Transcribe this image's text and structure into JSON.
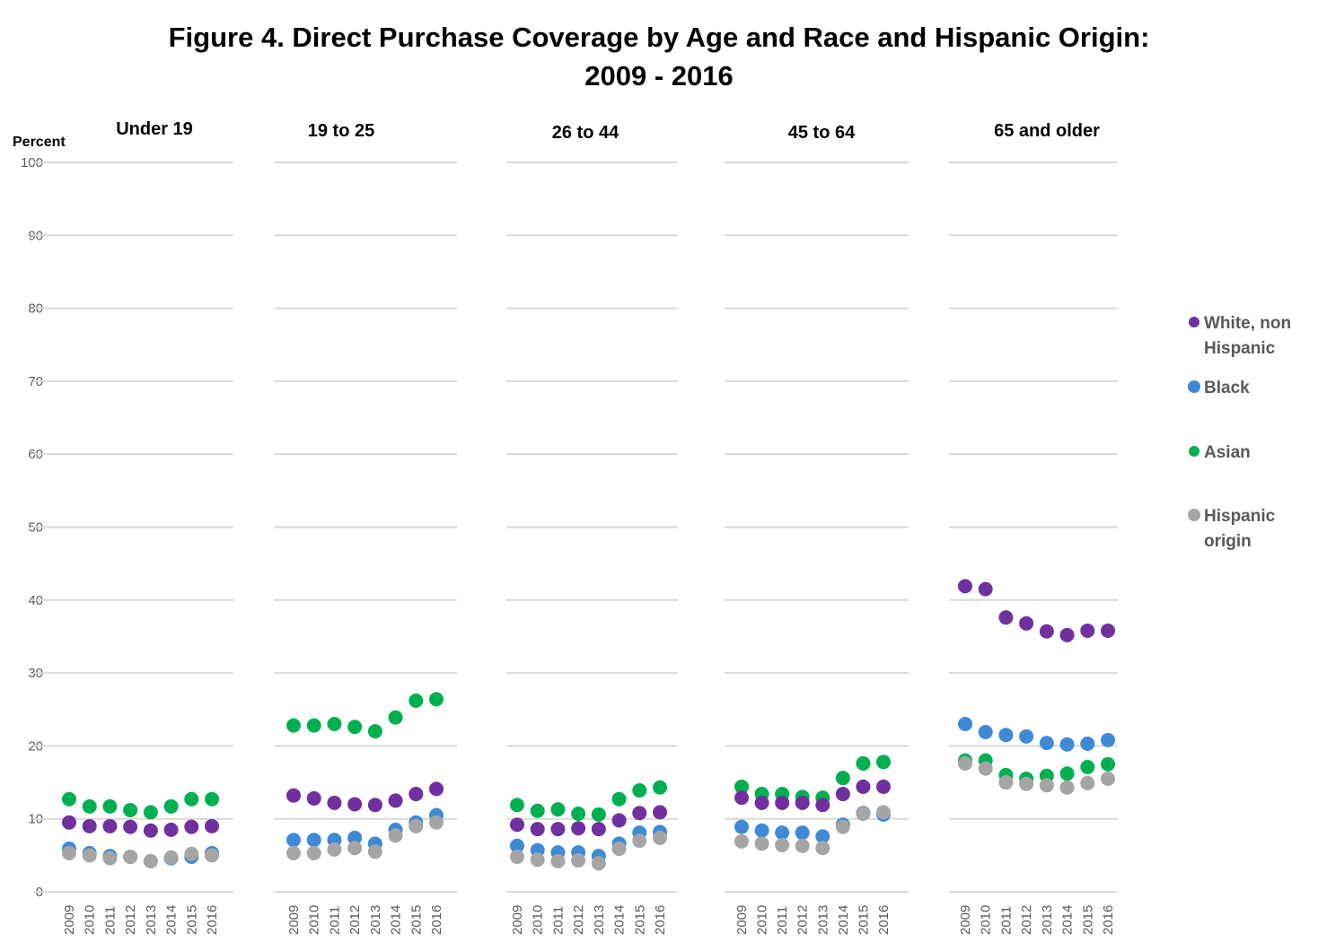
{
  "chart_data": {
    "type": "scatter",
    "title_lines": [
      "Figure 4. Direct Purchase Coverage by Age and Race and Hispanic Origin:",
      "2009 - 2016"
    ],
    "ylabel": "Percent",
    "xlabel": "",
    "ylim": [
      0,
      100
    ],
    "yticks": [
      0,
      10,
      20,
      30,
      40,
      50,
      60,
      70,
      80,
      90,
      100
    ],
    "grid": true,
    "legend_position": "right",
    "x": [
      "2009",
      "2010",
      "2011",
      "2012",
      "2013",
      "2014",
      "2015",
      "2016"
    ],
    "series_meta": [
      {
        "key": "white",
        "name_lines": [
          "White, non",
          "Hispanic"
        ],
        "color": "#7030a0"
      },
      {
        "key": "black",
        "name_lines": [
          "Black"
        ],
        "color": "#3f8ad6"
      },
      {
        "key": "asian",
        "name_lines": [
          "Asian"
        ],
        "color": "#00b050"
      },
      {
        "key": "hispanic",
        "name_lines": [
          "Hispanic",
          "origin"
        ],
        "color": "#a5a5a5"
      }
    ],
    "panels": [
      {
        "title": "Under 19",
        "series": {
          "white": [
            9.5,
            9.0,
            9.0,
            8.9,
            8.4,
            8.5,
            8.9,
            9.0
          ],
          "black": [
            5.9,
            5.3,
            4.9,
            4.8,
            4.2,
            4.6,
            4.8,
            5.3
          ],
          "asian": [
            12.7,
            11.7,
            11.7,
            11.2,
            10.9,
            11.7,
            12.7,
            12.7
          ],
          "hispanic": [
            5.3,
            5.0,
            4.6,
            4.8,
            4.2,
            4.7,
            5.2,
            5.0
          ]
        }
      },
      {
        "title": "19 to 25",
        "series": {
          "white": [
            13.2,
            12.8,
            12.2,
            12.0,
            11.9,
            12.5,
            13.4,
            14.1
          ],
          "black": [
            7.1,
            7.1,
            7.1,
            7.4,
            6.6,
            8.5,
            9.5,
            10.5
          ],
          "asian": [
            22.8,
            22.8,
            23.0,
            22.6,
            22.0,
            23.9,
            26.2,
            26.4
          ],
          "hispanic": [
            5.3,
            5.3,
            5.8,
            6.0,
            5.5,
            7.7,
            9.0,
            9.5
          ]
        }
      },
      {
        "title": "26 to 44",
        "series": {
          "white": [
            9.2,
            8.6,
            8.6,
            8.7,
            8.6,
            9.8,
            10.8,
            10.9
          ],
          "black": [
            6.3,
            5.7,
            5.4,
            5.4,
            4.9,
            6.6,
            8.1,
            8.2
          ],
          "asian": [
            11.9,
            11.1,
            11.3,
            10.7,
            10.6,
            12.7,
            13.9,
            14.3
          ],
          "hispanic": [
            4.8,
            4.4,
            4.2,
            4.3,
            3.9,
            5.9,
            7.0,
            7.4
          ]
        }
      },
      {
        "title": "45 to 64",
        "series": {
          "white": [
            12.9,
            12.2,
            12.2,
            12.2,
            11.9,
            13.4,
            14.4,
            14.4
          ],
          "black": [
            8.9,
            8.4,
            8.1,
            8.1,
            7.6,
            9.2,
            10.8,
            10.6
          ],
          "asian": [
            14.4,
            13.4,
            13.4,
            13.0,
            12.9,
            15.6,
            17.6,
            17.8
          ],
          "hispanic": [
            6.9,
            6.6,
            6.4,
            6.3,
            6.0,
            8.9,
            10.7,
            10.9
          ]
        }
      },
      {
        "title": "65 and older",
        "series": {
          "white": [
            41.9,
            41.5,
            37.6,
            36.8,
            35.7,
            35.2,
            35.8,
            35.8
          ],
          "black": [
            23.0,
            21.9,
            21.5,
            21.3,
            20.4,
            20.2,
            20.3,
            20.8
          ],
          "asian": [
            18.0,
            18.0,
            16.0,
            15.5,
            15.9,
            16.2,
            17.1,
            17.5
          ],
          "hispanic": [
            17.6,
            16.9,
            15.0,
            14.8,
            14.6,
            14.3,
            14.9,
            15.5
          ]
        }
      }
    ]
  }
}
